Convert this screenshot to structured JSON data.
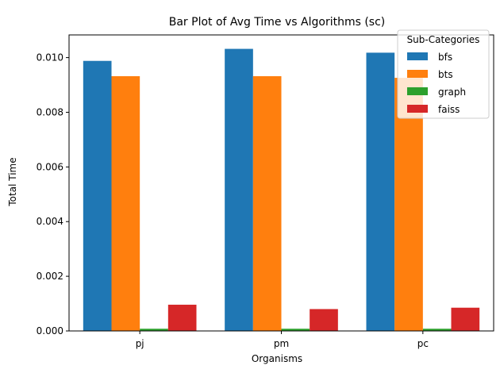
{
  "chart_data": {
    "type": "bar",
    "title": "Bar Plot of Avg Time vs Algorithms (sc)",
    "xlabel": "Organisms",
    "ylabel": "Total Time",
    "categories": [
      "pj",
      "pm",
      "pc"
    ],
    "series": [
      {
        "name": "bfs",
        "color": "#1f77b4",
        "values": [
          0.00988,
          0.01032,
          0.01018
        ]
      },
      {
        "name": "bts",
        "color": "#ff7f0e",
        "values": [
          0.00932,
          0.00932,
          0.00926
        ]
      },
      {
        "name": "graph",
        "color": "#2ca02c",
        "values": [
          8e-05,
          8e-05,
          8e-05
        ]
      },
      {
        "name": "faiss",
        "color": "#d62728",
        "values": [
          0.00096,
          0.0008,
          0.00085
        ]
      }
    ],
    "ylim": [
      0,
      0.01083
    ],
    "yticks": [
      "0.000",
      "0.002",
      "0.004",
      "0.006",
      "0.008",
      "0.010"
    ],
    "legend": {
      "title": "Sub-Categories",
      "placement": "top-right"
    },
    "grid": false
  }
}
